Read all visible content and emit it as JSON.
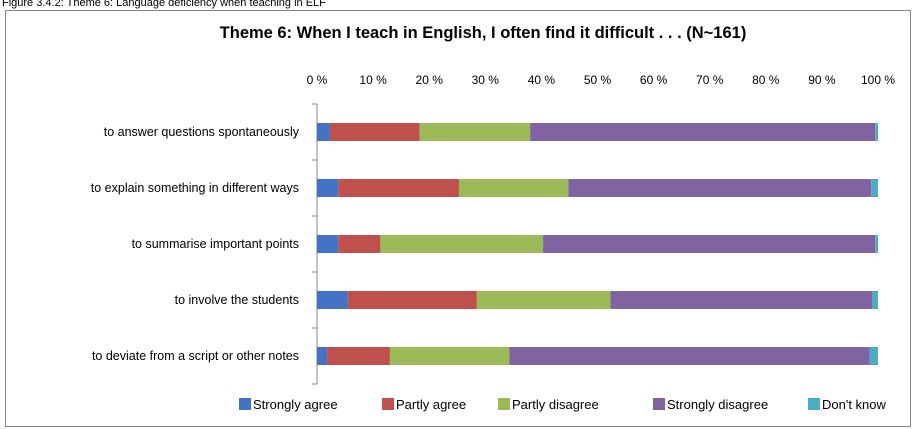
{
  "caption": "Figure 3.4.2: Theme 6: Language deficiency when teaching in ELF",
  "chart_data": {
    "type": "bar",
    "orientation": "horizontal",
    "stacked": true,
    "percent": true,
    "title": "Theme 6: When I teach in English, I often find it difficult . . . (N~161)",
    "xlim": [
      0,
      100
    ],
    "x_ticks": [
      "0 %",
      "10 %",
      "20 %",
      "30 %",
      "40 %",
      "50 %",
      "60 %",
      "70 %",
      "80 %",
      "90 %",
      "100 %"
    ],
    "categories": [
      "to answer questions spontaneously",
      "to explain something in different ways",
      "to summarise important points",
      "to involve the students",
      "to deviate from a script or other notes"
    ],
    "series": [
      {
        "name": "Strongly agree",
        "color": "#4472C4",
        "values": [
          2.3,
          3.8,
          3.8,
          5.5,
          1.8
        ]
      },
      {
        "name": "Partly agree",
        "color": "#C0504D",
        "values": [
          16.0,
          21.5,
          7.5,
          23.0,
          11.2
        ]
      },
      {
        "name": "Partly disagree",
        "color": "#9BBB59",
        "values": [
          19.7,
          19.5,
          29.0,
          23.8,
          21.3
        ]
      },
      {
        "name": "Strongly disagree",
        "color": "#8064A2",
        "values": [
          61.5,
          54.0,
          59.2,
          46.7,
          64.2
        ]
      },
      {
        "name": "Don't know",
        "color": "#4BACC6",
        "values": [
          0.5,
          1.2,
          0.5,
          1.0,
          1.5
        ]
      }
    ],
    "legend_position": "bottom",
    "grid": false
  }
}
